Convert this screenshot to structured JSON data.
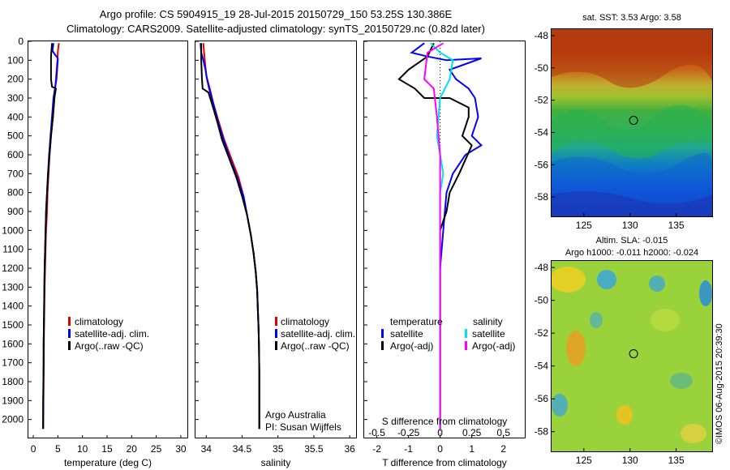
{
  "header": {
    "line1": "Argo profile: CS 5904915_19 28-Jul-2015 20150729_150 53.25S 130.386E",
    "line2": "Climatology: CARS2009. Satellite-adjusted climatology: synTS_20150729.nc (0.82d later)"
  },
  "credits": {
    "argo": "Argo Australia",
    "pi": "PI: Susan Wijffels",
    "imos": "©IMOS 06-Aug-2015 20:39:30"
  },
  "colors": {
    "climatology": "#e00000",
    "satellite": "#0000ff",
    "argo": "#000000",
    "sat_salinity": "#00e0f0",
    "argo_salinity": "#ff00ff"
  },
  "chart_data": [
    {
      "type": "line",
      "panel": "temperature",
      "xlabel": "temperature (deg C)",
      "ylabel": "",
      "xlim": [
        -1,
        31.5
      ],
      "ylim": [
        2100,
        0
      ],
      "xticks": [
        0,
        5,
        10,
        15,
        20,
        25,
        30
      ],
      "yticks": [
        0,
        100,
        200,
        300,
        400,
        500,
        600,
        700,
        800,
        900,
        1000,
        1100,
        1200,
        1300,
        1400,
        1500,
        1600,
        1700,
        1800,
        1900,
        2000
      ],
      "legend": [
        "climatology",
        "satellite-adj. clim.",
        "Argo(..raw -QC)"
      ],
      "series": [
        {
          "name": "climatology",
          "color": "#e00000",
          "x": [
            5.2,
            5.0,
            4.9,
            4.6,
            4.3,
            4.0,
            3.6,
            3.3,
            3.1,
            2.9,
            2.8,
            2.6,
            2.5,
            2.4,
            2.3,
            2.25,
            2.2,
            2.15,
            2.1,
            2.1,
            2.05,
            2.0,
            2.0
          ],
          "y": [
            10,
            50,
            100,
            200,
            300,
            400,
            500,
            600,
            700,
            800,
            900,
            1000,
            1100,
            1200,
            1300,
            1400,
            1500,
            1600,
            1700,
            1800,
            1900,
            2000,
            2050
          ]
        },
        {
          "name": "satellite-adj. clim.",
          "color": "#0000ff",
          "x": [
            4.1,
            3.9,
            4.4,
            5.0,
            4.7,
            4.1,
            3.8,
            3.5,
            3.2,
            3.0,
            2.8,
            2.6,
            2.5,
            2.4,
            2.3,
            2.25,
            2.2,
            2.15,
            2.1,
            2.1,
            2.05,
            2.0,
            2.0
          ],
          "y": [
            10,
            50,
            70,
            90,
            200,
            300,
            400,
            500,
            600,
            700,
            800,
            900,
            1000,
            1100,
            1200,
            1300,
            1400,
            1500,
            1600,
            1700,
            1800,
            1900,
            2050
          ]
        },
        {
          "name": "Argo(..raw -QC)",
          "color": "#000000",
          "x": [
            3.8,
            3.6,
            3.6,
            3.8,
            4.6,
            4.3,
            4.0,
            3.6,
            3.3,
            3.0,
            2.8,
            2.6,
            2.5,
            2.4,
            2.3,
            2.25,
            2.2,
            2.15,
            2.1,
            2.1,
            2.05,
            2.0
          ],
          "y": [
            10,
            80,
            200,
            240,
            250,
            300,
            400,
            500,
            600,
            700,
            800,
            900,
            1000,
            1100,
            1200,
            1300,
            1400,
            1500,
            1600,
            1700,
            1800,
            2050
          ]
        }
      ]
    },
    {
      "type": "line",
      "panel": "salinity",
      "xlabel": "salinity",
      "ylabel": "",
      "xlim": [
        33.85,
        36.1
      ],
      "ylim": [
        2100,
        0
      ],
      "xticks": [
        34,
        34.5,
        35,
        35.5,
        36
      ],
      "legend": [
        "climatology",
        "satellite-adj. clim.",
        "Argo(..raw -QC)"
      ],
      "series": [
        {
          "name": "climatology",
          "color": "#e00000",
          "x": [
            33.96,
            33.97,
            33.98,
            34.0,
            34.05,
            34.1,
            34.17,
            34.25,
            34.35,
            34.45,
            34.52,
            34.57,
            34.62,
            34.66,
            34.69,
            34.71,
            34.72,
            34.73,
            34.735,
            34.74,
            34.74,
            34.74
          ],
          "y": [
            10,
            60,
            100,
            180,
            250,
            330,
            420,
            520,
            620,
            720,
            820,
            920,
            1020,
            1120,
            1220,
            1320,
            1420,
            1520,
            1620,
            1750,
            1900,
            2050
          ]
        },
        {
          "name": "satellite-adj. clim.",
          "color": "#0000ff",
          "x": [
            33.92,
            33.93,
            33.96,
            33.99,
            34.01,
            34.04,
            34.1,
            34.16,
            34.24,
            34.33,
            34.43,
            34.52,
            34.57,
            34.62,
            34.66,
            34.69,
            34.71,
            34.72,
            34.73,
            34.735,
            34.74,
            34.74,
            34.74
          ],
          "y": [
            10,
            60,
            100,
            150,
            200,
            250,
            330,
            420,
            520,
            620,
            720,
            820,
            920,
            1020,
            1120,
            1220,
            1320,
            1420,
            1520,
            1620,
            1750,
            1900,
            2050
          ]
        },
        {
          "name": "Argo(..raw -QC)",
          "color": "#000000",
          "x": [
            33.93,
            33.93,
            33.94,
            33.95,
            34.03,
            34.08,
            34.15,
            34.22,
            34.32,
            34.42,
            34.5,
            34.57,
            34.62,
            34.66,
            34.69,
            34.71,
            34.72,
            34.73,
            34.735,
            34.74,
            34.74
          ],
          "y": [
            10,
            100,
            200,
            250,
            270,
            330,
            420,
            520,
            620,
            720,
            820,
            920,
            1020,
            1120,
            1220,
            1320,
            1420,
            1520,
            1620,
            1750,
            2050
          ]
        }
      ]
    },
    {
      "type": "line",
      "panel": "difference",
      "xlabel": "T difference from climatology",
      "x2label": "S difference from climatology",
      "xlim": [
        -2.4,
        2.7
      ],
      "ylim": [
        2100,
        0
      ],
      "xticks": [
        -2,
        -1,
        0,
        1,
        2
      ],
      "x2ticks": [
        "-0.5",
        "-0.25",
        "0",
        "0.25",
        "0.5"
      ],
      "x2tick_pos": [
        -2,
        -1,
        0,
        1,
        2
      ],
      "legend_title_t": "temperature",
      "legend_title_s": "salinity",
      "legend_t": [
        "satellite",
        "Argo(-adj)"
      ],
      "legend_s": [
        "satellite",
        "Argo(-adj)"
      ],
      "series": [
        {
          "name": "T satellite",
          "color": "#0000ff",
          "x": [
            -0.5,
            -0.9,
            -0.4,
            0.2,
            1.3,
            0.3,
            0.5,
            0.9,
            1.1,
            1.2,
            1.0,
            1.3,
            0.8,
            0.4,
            0.2,
            0.1,
            0.0,
            0.0,
            0.0,
            0.0,
            0.0
          ],
          "y": [
            10,
            60,
            80,
            100,
            90,
            150,
            200,
            250,
            300,
            400,
            500,
            550,
            600,
            700,
            800,
            1000,
            1200,
            1400,
            1600,
            1800,
            2050
          ]
        },
        {
          "name": "T Argo(-adj)",
          "color": "#000000",
          "x": [
            -0.2,
            -0.4,
            -1.0,
            -1.3,
            -0.8,
            -0.5,
            0.3,
            0.9,
            0.9,
            0.7,
            1.0,
            0.6,
            0.3,
            0.2,
            0.0,
            0.0,
            0.0,
            0.0,
            0.0
          ],
          "y": [
            10,
            80,
            150,
            200,
            250,
            300,
            300,
            350,
            400,
            500,
            550,
            700,
            800,
            900,
            1000,
            1200,
            1400,
            1600,
            2050
          ]
        },
        {
          "name": "S satellite",
          "color": "#00e0f0",
          "x": [
            -0.3,
            0.0,
            0.4,
            0.3,
            0.0,
            -0.1,
            0.1,
            0.0,
            0.0,
            0.0,
            0.0,
            0.0
          ],
          "y": [
            10,
            60,
            100,
            200,
            300,
            500,
            700,
            800,
            1000,
            1300,
            1600,
            2050
          ]
        },
        {
          "name": "S Argo(-adj)",
          "color": "#ff00ff",
          "x": [
            0.1,
            -0.4,
            -0.5,
            -0.2,
            -0.1,
            0.0,
            0.0,
            0.0,
            0.0
          ],
          "y": [
            10,
            60,
            200,
            250,
            400,
            600,
            800,
            1200,
            2050
          ]
        }
      ]
    },
    {
      "type": "heatmap",
      "panel": "sst-map",
      "title": "sat. SST: 3.53 Argo: 3.58",
      "xticks": [
        125,
        130,
        135
      ],
      "yticks": [
        -48,
        -50,
        -52,
        -54,
        -56,
        -58
      ],
      "xlim": [
        121.5,
        138.9
      ],
      "ylim": [
        -59.2,
        -47.6
      ],
      "marker": {
        "lon": 130.386,
        "lat": -53.25
      }
    },
    {
      "type": "heatmap",
      "panel": "sla-map",
      "title": "Altim. SLA: -0.015",
      "subtitle": "Argo h1000: -0.011 h2000: -0.024",
      "xticks": [
        125,
        130,
        135
      ],
      "yticks": [
        -48,
        -50,
        -52,
        -54,
        -56,
        -58
      ],
      "xlim": [
        121.5,
        138.9
      ],
      "ylim": [
        -59.2,
        -47.6
      ],
      "marker": {
        "lon": 130.386,
        "lat": -53.25
      }
    }
  ]
}
